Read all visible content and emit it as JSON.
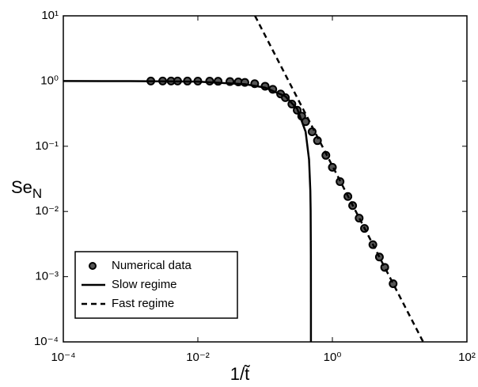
{
  "chart_data": {
    "type": "line",
    "xlabel": "1/t̃",
    "ylabel": {
      "text": "Se",
      "subscript": "N"
    },
    "xscale": "log",
    "yscale": "log",
    "xlim": [
      0.0001,
      100
    ],
    "ylim": [
      0.0001,
      10
    ],
    "xticks": [
      {
        "value": 0.0001,
        "label": "10⁻⁴"
      },
      {
        "value": 0.01,
        "label": "10⁻²"
      },
      {
        "value": 1,
        "label": "10⁰"
      },
      {
        "value": 100,
        "label": "10²"
      }
    ],
    "yticks": [
      {
        "value": 0.0001,
        "label": "10⁻⁴"
      },
      {
        "value": 0.001,
        "label": "10⁻³"
      },
      {
        "value": 0.01,
        "label": "10⁻²"
      },
      {
        "value": 0.1,
        "label": "10⁻¹"
      },
      {
        "value": 1,
        "label": "10⁰"
      },
      {
        "value": 10,
        "label": "10¹"
      }
    ],
    "legend": "lower left",
    "series": [
      {
        "name": "Numerical data",
        "kind": "markers",
        "color": "#000000",
        "x": [
          0.002,
          0.003,
          0.004,
          0.005,
          0.007,
          0.01,
          0.015,
          0.02,
          0.03,
          0.04,
          0.05,
          0.07,
          0.1,
          0.13,
          0.17,
          0.2,
          0.25,
          0.3,
          0.35,
          0.4,
          0.5,
          0.6,
          0.8,
          1,
          1.3,
          1.7,
          2,
          2.5,
          3,
          4,
          5,
          6,
          8
        ],
        "values": [
          1.0,
          1.0,
          1.0,
          1.0,
          0.999,
          0.998,
          0.996,
          0.992,
          0.982,
          0.969,
          0.952,
          0.911,
          0.833,
          0.747,
          0.634,
          0.556,
          0.444,
          0.357,
          0.29,
          0.238,
          0.167,
          0.122,
          0.0725,
          0.0476,
          0.0287,
          0.017,
          0.0123,
          0.0079,
          0.0055,
          0.0031,
          0.002,
          0.00139,
          0.00078
        ]
      },
      {
        "name": "Slow regime",
        "kind": "solid",
        "color": "#000000",
        "x": [
          0.0001,
          0.001,
          0.01,
          0.05,
          0.1,
          0.2,
          0.3,
          0.4,
          0.45,
          0.47,
          0.475,
          0.479,
          0.4798,
          0.47995
        ],
        "values": [
          0.9998,
          0.998,
          0.979,
          0.896,
          0.792,
          0.583,
          0.375,
          0.167,
          0.0625,
          0.0208,
          0.0104,
          0.00208,
          0.0004,
          0.0001
        ]
      },
      {
        "name": "Fast regime",
        "kind": "dashed",
        "color": "#000000",
        "x": [
          0.0707,
          22.36
        ],
        "values": [
          10,
          0.0001
        ]
      }
    ]
  }
}
